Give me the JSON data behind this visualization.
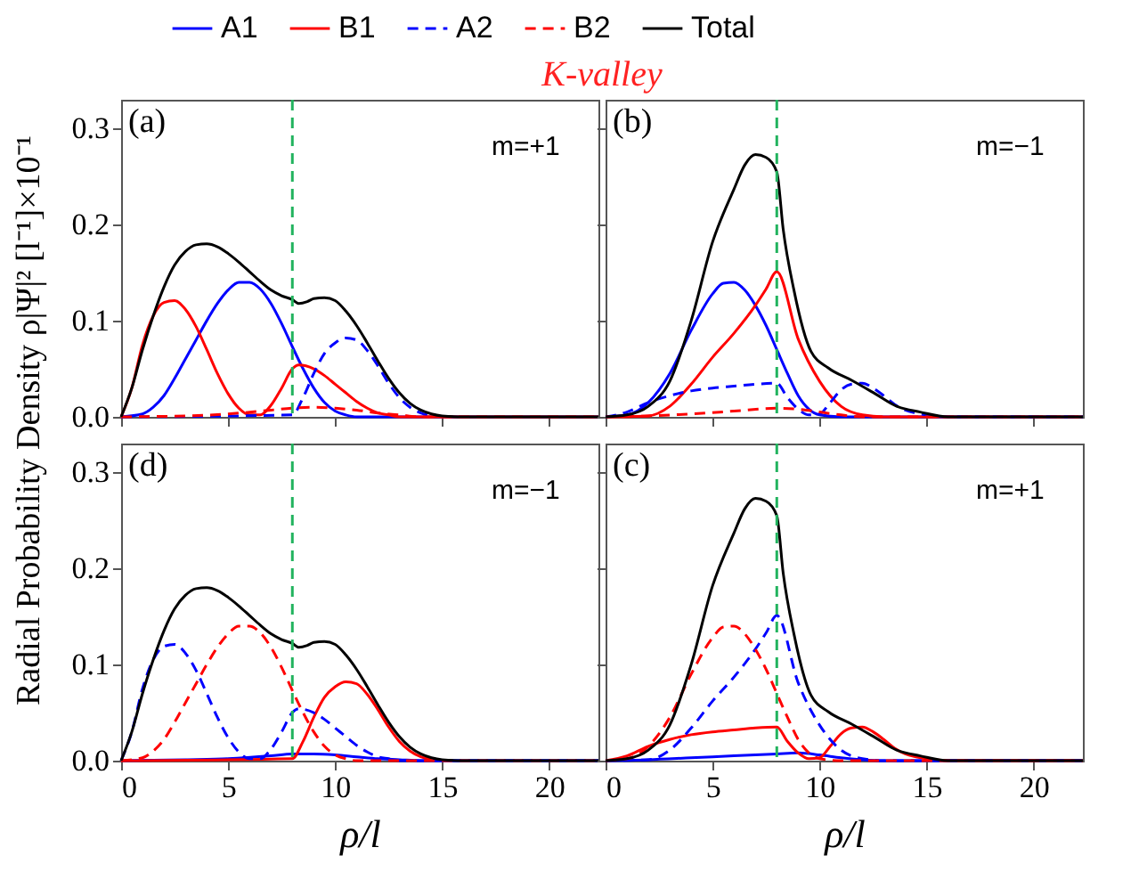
{
  "chart_data": [
    {
      "type": "line",
      "title": "K-valley",
      "ylabel": "Radial Probability Density ρ|Ψ|² [l⁻¹]×10⁻¹",
      "annotations": [
        "(a)",
        "m=+1"
      ],
      "xlim": [
        0,
        22.3
      ],
      "xticks": [
        0,
        5,
        10,
        15,
        20
      ],
      "ylim": [
        0,
        0.33
      ],
      "yticks": [
        {
          "value": 0,
          "label": "0.0"
        },
        0.1,
        0.2,
        0.3
      ],
      "tick_labels": "y",
      "legend": "top",
      "ref_lines": [
        {
          "axis": "x",
          "value": 8,
          "color": "#22b35e",
          "line_style": "dashed"
        }
      ],
      "series": [
        {
          "name": "A1",
          "color": "#0000ff",
          "line_style": "solid",
          "x": [
            0,
            1,
            1.5,
            2,
            2.5,
            3,
            3.5,
            4,
            4.5,
            5,
            5.5,
            6,
            6.5,
            7,
            7.5,
            8,
            8.5,
            9,
            9.5,
            10,
            10.5,
            11,
            22.3
          ],
          "values": [
            0,
            0.003,
            0.01,
            0.022,
            0.04,
            0.06,
            0.08,
            0.1,
            0.118,
            0.132,
            0.14,
            0.14,
            0.133,
            0.118,
            0.097,
            0.073,
            0.05,
            0.03,
            0.015,
            0.006,
            0.002,
            0,
            0
          ]
        },
        {
          "name": "B1",
          "color": "#ff0000",
          "line_style": "solid",
          "x": [
            0,
            0.5,
            1,
            1.5,
            2,
            2.5,
            3,
            3.5,
            4,
            4.5,
            5,
            5.5,
            6,
            6.5,
            7,
            7.5,
            8,
            8.3,
            9,
            9.5,
            10,
            10.5,
            11,
            11.5,
            12,
            12.5,
            13,
            22.3
          ],
          "values": [
            0,
            0.03,
            0.075,
            0.105,
            0.119,
            0.121,
            0.112,
            0.094,
            0.07,
            0.045,
            0.024,
            0.009,
            0.002,
            0.002,
            0.012,
            0.03,
            0.05,
            0.054,
            0.05,
            0.043,
            0.034,
            0.025,
            0.016,
            0.009,
            0.004,
            0.002,
            0,
            0
          ]
        },
        {
          "name": "A2",
          "color": "#0000ff",
          "line_style": "dashed",
          "x": [
            0,
            8,
            8.5,
            9,
            9.5,
            10,
            10.5,
            11,
            11.5,
            12,
            12.5,
            13,
            13.5,
            14,
            14.5
          ],
          "values": [
            0,
            0.002,
            0.02,
            0.045,
            0.066,
            0.077,
            0.082,
            0.08,
            0.069,
            0.053,
            0.035,
            0.02,
            0.01,
            0.004,
            0.001
          ]
        },
        {
          "name": "B2",
          "color": "#ff0000",
          "line_style": "dashed",
          "x": [
            0,
            3,
            5,
            7,
            8,
            9,
            10,
            11,
            12,
            13,
            14,
            22.3
          ],
          "values": [
            0,
            0.001,
            0.003,
            0.007,
            0.009,
            0.01,
            0.009,
            0.007,
            0.004,
            0.002,
            0,
            0
          ]
        },
        {
          "name": "Total",
          "color": "#000000",
          "line_style": "solid",
          "x": [
            0,
            0.5,
            1,
            1.5,
            2,
            2.5,
            3,
            3.5,
            4,
            4.5,
            5,
            5.5,
            6,
            6.5,
            7,
            7.5,
            8,
            8.3,
            8.7,
            9,
            9.5,
            10,
            10.5,
            11,
            11.5,
            12,
            12.5,
            13,
            13.5,
            14,
            14.5,
            15,
            16,
            22.3
          ],
          "values": [
            0,
            0.03,
            0.07,
            0.105,
            0.135,
            0.158,
            0.172,
            0.179,
            0.18,
            0.177,
            0.17,
            0.161,
            0.151,
            0.141,
            0.132,
            0.126,
            0.122,
            0.118,
            0.12,
            0.123,
            0.124,
            0.121,
            0.11,
            0.095,
            0.077,
            0.058,
            0.04,
            0.025,
            0.014,
            0.007,
            0.003,
            0.001,
            0,
            0
          ]
        }
      ]
    },
    {
      "type": "line",
      "annotations": [
        "(b)",
        "m=−1"
      ],
      "xlim": [
        0,
        22.3
      ],
      "xticks": [
        0,
        5,
        10,
        15,
        20
      ],
      "ylim": [
        0,
        0.33
      ],
      "yticks": [
        0,
        0.1,
        0.2,
        0.3
      ],
      "tick_labels": false,
      "ref_lines": [
        {
          "axis": "x",
          "value": 8,
          "color": "#22b35e",
          "line_style": "dashed"
        }
      ],
      "series": [
        {
          "color": "#0000ff",
          "line_style": "solid",
          "x": [
            0,
            1,
            2,
            3,
            4,
            5,
            5.5,
            6,
            6.5,
            7,
            7.5,
            8,
            8.5,
            9,
            9.5,
            10,
            11,
            22.3
          ],
          "values": [
            0,
            0.002,
            0.015,
            0.045,
            0.09,
            0.128,
            0.139,
            0.14,
            0.132,
            0.116,
            0.095,
            0.07,
            0.045,
            0.022,
            0.008,
            0.002,
            0,
            0
          ]
        },
        {
          "color": "#ff0000",
          "line_style": "solid",
          "x": [
            0,
            2,
            3,
            4,
            5,
            6,
            7,
            7.5,
            8,
            9,
            10,
            11,
            12,
            13,
            22.3
          ],
          "values": [
            0,
            0.001,
            0.011,
            0.034,
            0.062,
            0.087,
            0.116,
            0.133,
            0.151,
            0.081,
            0.037,
            0.011,
            0.002,
            0,
            0
          ]
        },
        {
          "color": "#0000ff",
          "line_style": "dashed",
          "x": [
            0,
            1,
            2,
            3,
            4,
            5,
            6,
            7,
            8,
            8.5,
            9,
            9.5,
            10,
            10.5,
            11,
            11.5,
            12,
            12.5,
            13,
            13.5,
            14,
            14.5,
            15,
            16,
            22.3
          ],
          "values": [
            0,
            0.005,
            0.015,
            0.022,
            0.027,
            0.03,
            0.032,
            0.034,
            0.035,
            0.02,
            0.008,
            0.002,
            0.003,
            0.015,
            0.028,
            0.034,
            0.035,
            0.03,
            0.022,
            0.013,
            0.007,
            0.004,
            0.002,
            0,
            0
          ]
        },
        {
          "color": "#ff0000",
          "line_style": "dashed",
          "x": [
            0,
            2,
            4,
            6,
            8,
            9,
            10,
            11,
            12,
            22.3
          ],
          "values": [
            0,
            0.001,
            0.003,
            0.006,
            0.009,
            0.008,
            0.005,
            0.002,
            0,
            0
          ]
        },
        {
          "color": "#000000",
          "line_style": "solid",
          "x": [
            0,
            1,
            2,
            3,
            4,
            5,
            6,
            6.5,
            7,
            7.5,
            8,
            8.3,
            8.8,
            9.6,
            10.4,
            11.5,
            12.6,
            13.6,
            14.7,
            16,
            22.3
          ],
          "values": [
            0,
            0.002,
            0.011,
            0.037,
            0.1,
            0.182,
            0.237,
            0.262,
            0.273,
            0.27,
            0.255,
            0.195,
            0.132,
            0.068,
            0.051,
            0.038,
            0.024,
            0.011,
            0.005,
            0,
            0
          ]
        }
      ]
    },
    {
      "type": "line",
      "xlabel": "ρ/l",
      "annotations": [
        "(d)",
        "m=−1"
      ],
      "xlim": [
        0,
        22.3
      ],
      "xticks": [
        0,
        5,
        10,
        15,
        20
      ],
      "ylim": [
        0,
        0.33
      ],
      "yticks": [
        {
          "value": 0,
          "label": "0.0"
        },
        0.1,
        0.2,
        0.3
      ],
      "ref_lines": [
        {
          "axis": "x",
          "value": 8,
          "color": "#22b35e",
          "line_style": "dashed"
        }
      ],
      "series": [
        {
          "color": "#0000ff",
          "line_style": "solid",
          "x": [
            0,
            3,
            5,
            7,
            8,
            9,
            10,
            11,
            12,
            13,
            14,
            22.3
          ],
          "values": [
            0,
            0.001,
            0.002,
            0.005,
            0.007,
            0.007,
            0.006,
            0.004,
            0.002,
            0.001,
            0,
            0
          ]
        },
        {
          "color": "#ff0000",
          "line_style": "solid",
          "x": [
            0,
            8,
            8.5,
            9,
            9.5,
            10,
            10.5,
            11,
            11.5,
            12,
            12.5,
            13,
            13.5,
            14,
            14.5
          ],
          "values": [
            0,
            0.002,
            0.02,
            0.045,
            0.066,
            0.077,
            0.082,
            0.08,
            0.069,
            0.053,
            0.035,
            0.02,
            0.01,
            0.004,
            0.001
          ]
        },
        {
          "color": "#0000ff",
          "line_style": "dashed",
          "x": [
            0,
            0.5,
            1,
            1.5,
            2,
            2.5,
            3,
            3.5,
            4,
            4.5,
            5,
            5.5,
            6,
            6.5,
            7,
            7.5,
            8,
            8.3,
            9,
            9.5,
            10,
            10.5,
            11,
            11.5,
            12,
            12.5,
            13,
            22.3
          ],
          "values": [
            0,
            0.03,
            0.075,
            0.105,
            0.119,
            0.121,
            0.112,
            0.094,
            0.07,
            0.045,
            0.024,
            0.009,
            0.002,
            0.002,
            0.012,
            0.03,
            0.05,
            0.054,
            0.05,
            0.043,
            0.034,
            0.025,
            0.016,
            0.009,
            0.004,
            0.002,
            0,
            0
          ]
        },
        {
          "color": "#ff0000",
          "line_style": "dashed",
          "x": [
            0,
            1,
            1.5,
            2,
            2.5,
            3,
            3.5,
            4,
            4.5,
            5,
            5.5,
            6,
            6.5,
            7,
            7.5,
            8,
            8.5,
            9,
            9.5,
            10,
            10.5,
            11,
            22.3
          ],
          "values": [
            0,
            0.003,
            0.01,
            0.022,
            0.04,
            0.06,
            0.08,
            0.1,
            0.118,
            0.132,
            0.14,
            0.14,
            0.133,
            0.118,
            0.097,
            0.073,
            0.05,
            0.03,
            0.015,
            0.006,
            0.002,
            0,
            0
          ]
        },
        {
          "color": "#000000",
          "line_style": "solid",
          "x": [
            0,
            0.5,
            1,
            1.5,
            2,
            2.5,
            3,
            3.5,
            4,
            4.5,
            5,
            5.5,
            6,
            6.5,
            7,
            7.5,
            8,
            8.3,
            8.7,
            9,
            9.5,
            10,
            10.5,
            11,
            11.5,
            12,
            12.5,
            13,
            13.5,
            14,
            14.5,
            15,
            16,
            22.3
          ],
          "values": [
            0,
            0.03,
            0.07,
            0.105,
            0.135,
            0.158,
            0.172,
            0.179,
            0.18,
            0.177,
            0.17,
            0.161,
            0.151,
            0.141,
            0.132,
            0.126,
            0.122,
            0.118,
            0.12,
            0.123,
            0.124,
            0.121,
            0.11,
            0.095,
            0.077,
            0.058,
            0.04,
            0.025,
            0.014,
            0.007,
            0.003,
            0.001,
            0,
            0
          ]
        }
      ]
    },
    {
      "type": "line",
      "xlabel": "ρ/l",
      "annotations": [
        "(c)",
        "m=+1"
      ],
      "xlim": [
        0,
        22.3
      ],
      "xticks": [
        0,
        5,
        10,
        15,
        20
      ],
      "ylim": [
        0,
        0.33
      ],
      "yticks": [
        0,
        0.1,
        0.2,
        0.3
      ],
      "tick_labels": "x",
      "ref_lines": [
        {
          "axis": "x",
          "value": 8,
          "color": "#22b35e",
          "line_style": "dashed"
        }
      ],
      "series": [
        {
          "color": "#0000ff",
          "line_style": "solid",
          "x": [
            0,
            2,
            4,
            6,
            8,
            9,
            10,
            11,
            12,
            13,
            22.3
          ],
          "values": [
            0,
            0.001,
            0.003,
            0.005,
            0.007,
            0.008,
            0.006,
            0.003,
            0.001,
            0,
            0
          ]
        },
        {
          "color": "#ff0000",
          "line_style": "solid",
          "x": [
            0,
            1,
            2,
            3,
            4,
            5,
            6,
            7,
            8,
            8.5,
            9,
            9.5,
            10,
            10.5,
            11,
            11.5,
            12,
            12.5,
            13,
            13.5,
            14,
            14.5,
            15,
            16,
            22.3
          ],
          "values": [
            0,
            0.005,
            0.015,
            0.022,
            0.027,
            0.03,
            0.032,
            0.034,
            0.035,
            0.02,
            0.008,
            0.002,
            0.003,
            0.015,
            0.028,
            0.034,
            0.035,
            0.03,
            0.022,
            0.013,
            0.007,
            0.004,
            0.002,
            0,
            0
          ]
        },
        {
          "color": "#0000ff",
          "line_style": "dashed",
          "x": [
            0,
            2,
            3,
            4,
            5,
            6,
            7,
            7.5,
            8,
            9,
            10,
            11,
            12,
            13,
            22.3
          ],
          "values": [
            0,
            0.001,
            0.011,
            0.034,
            0.062,
            0.087,
            0.116,
            0.133,
            0.151,
            0.081,
            0.037,
            0.011,
            0.002,
            0,
            0
          ]
        },
        {
          "color": "#ff0000",
          "line_style": "dashed",
          "x": [
            0,
            1,
            2,
            3,
            4,
            5,
            5.5,
            6,
            6.5,
            7,
            7.5,
            8,
            8.5,
            9,
            9.5,
            10,
            11,
            22.3
          ],
          "values": [
            0,
            0.002,
            0.015,
            0.045,
            0.09,
            0.128,
            0.139,
            0.14,
            0.132,
            0.116,
            0.095,
            0.07,
            0.045,
            0.022,
            0.008,
            0.002,
            0,
            0
          ]
        },
        {
          "color": "#000000",
          "line_style": "solid",
          "x": [
            0,
            1,
            2,
            3,
            4,
            5,
            6,
            6.5,
            7,
            7.5,
            8,
            8.3,
            8.8,
            9.6,
            10.4,
            11.5,
            12.6,
            13.6,
            14.7,
            16,
            22.3
          ],
          "values": [
            0,
            0.002,
            0.011,
            0.037,
            0.1,
            0.182,
            0.237,
            0.262,
            0.273,
            0.27,
            0.255,
            0.195,
            0.132,
            0.068,
            0.051,
            0.038,
            0.024,
            0.011,
            0.005,
            0,
            0
          ]
        }
      ]
    }
  ]
}
